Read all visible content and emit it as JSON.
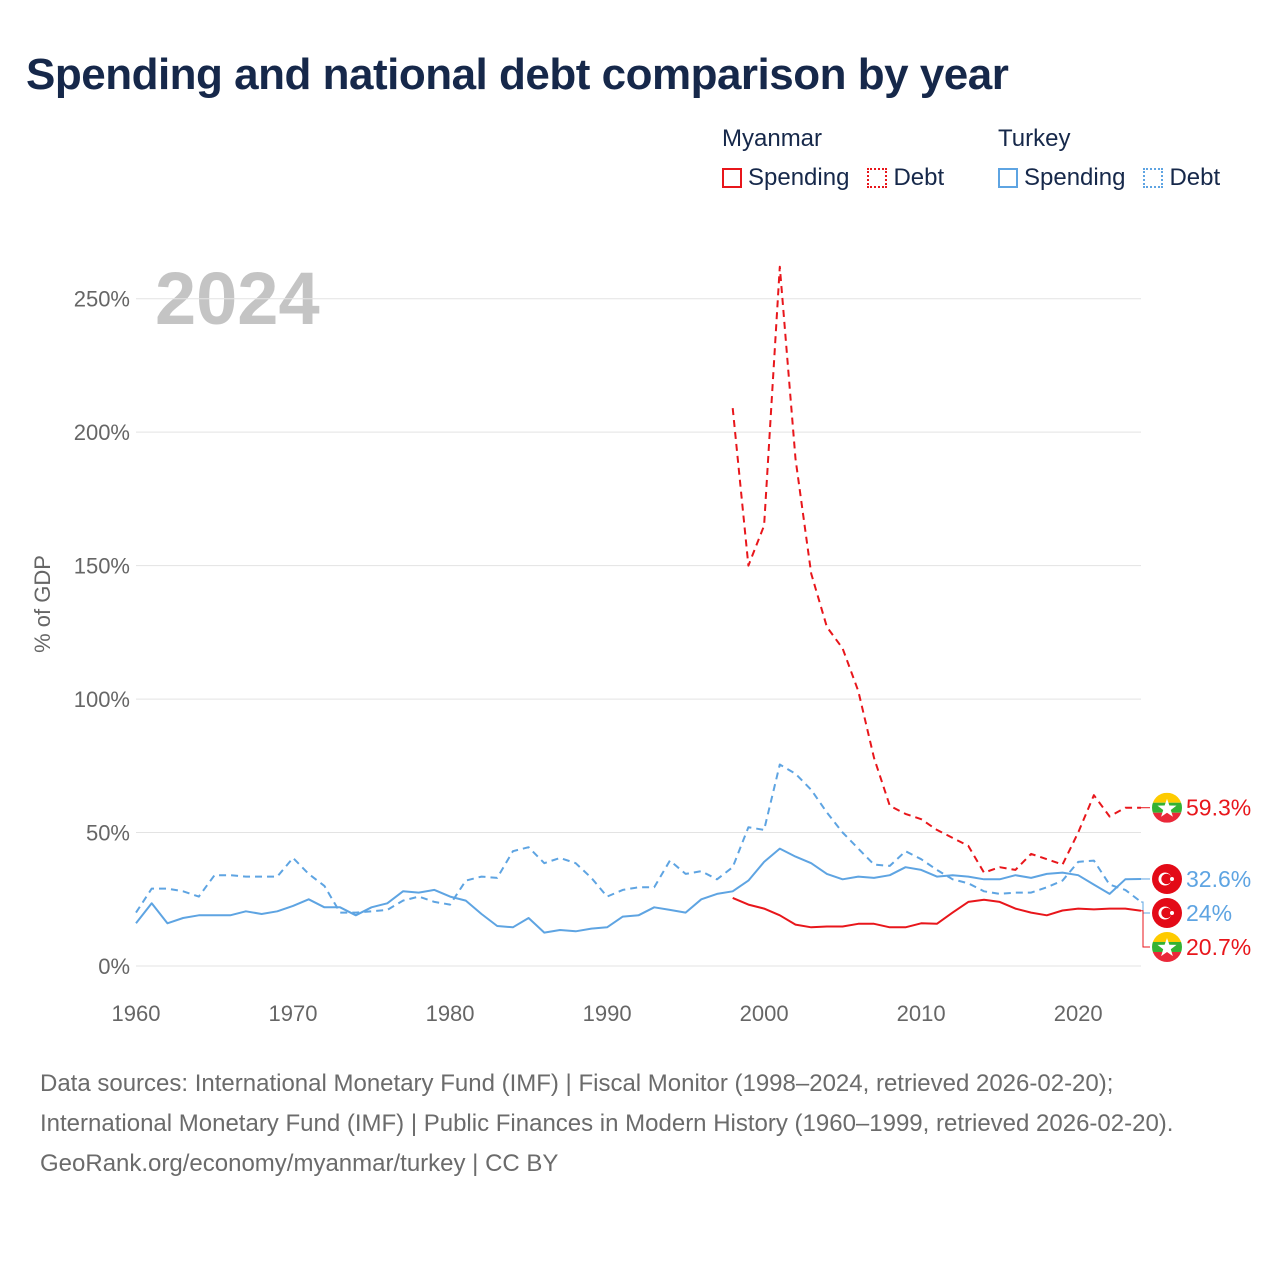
{
  "title": "Spending and national debt comparison by year",
  "legend": {
    "groups": [
      {
        "country": "Myanmar",
        "color": "#e8161b",
        "spending_label": "Spending",
        "debt_label": "Debt"
      },
      {
        "country": "Turkey",
        "color": "#5ea4e2",
        "spending_label": "Spending",
        "debt_label": "Debt"
      }
    ]
  },
  "chart_data": {
    "type": "line",
    "year_watermark": "2024",
    "ylabel": "% of GDP",
    "xlabel": "",
    "xlim": [
      1960,
      2024
    ],
    "ylim": [
      0,
      260
    ],
    "x_ticks": [
      1960,
      1970,
      1980,
      1990,
      2000,
      2010,
      2020
    ],
    "x_tick_labels": [
      "1960",
      "1970",
      "1980",
      "1990",
      "2000",
      "2010",
      "2020"
    ],
    "y_ticks": [
      0,
      50,
      100,
      150,
      200,
      250
    ],
    "y_tick_labels": [
      "0%",
      "50%",
      "100%",
      "150%",
      "200%",
      "250%"
    ],
    "grid": true,
    "series": [
      {
        "name": "Myanmar Debt",
        "country": "Myanmar",
        "kind": "debt",
        "style": "dashed",
        "color": "#e8161b",
        "end_label": "59.3%",
        "flag": "myanmar",
        "x": [
          1998,
          1999,
          2000,
          2001,
          2002,
          2003,
          2004,
          2005,
          2006,
          2007,
          2008,
          2009,
          2010,
          2011,
          2012,
          2013,
          2014,
          2015,
          2016,
          2017,
          2018,
          2019,
          2020,
          2021,
          2022,
          2023,
          2024
        ],
        "values": [
          209,
          150,
          165,
          262,
          190,
          147,
          127,
          119,
          103,
          78,
          60,
          57,
          55,
          51,
          48,
          45,
          35,
          37,
          36,
          42,
          40,
          38,
          50,
          64,
          56,
          59.3,
          59.3
        ]
      },
      {
        "name": "Myanmar Spending",
        "country": "Myanmar",
        "kind": "spending",
        "style": "solid",
        "color": "#e8161b",
        "end_label": "20.7%",
        "flag": "myanmar",
        "x": [
          1998,
          1999,
          2000,
          2001,
          2002,
          2003,
          2004,
          2005,
          2006,
          2007,
          2008,
          2009,
          2010,
          2011,
          2012,
          2013,
          2014,
          2015,
          2016,
          2017,
          2018,
          2019,
          2020,
          2021,
          2022,
          2023,
          2024
        ],
        "values": [
          25.5,
          23,
          21.5,
          19,
          15.5,
          14.5,
          14.8,
          14.8,
          15.8,
          15.8,
          14.5,
          14.5,
          16,
          15.8,
          20,
          24,
          24.8,
          24,
          21.5,
          20,
          19,
          20.8,
          21.5,
          21.2,
          21.5,
          21.5,
          20.7
        ]
      },
      {
        "name": "Turkey Debt",
        "country": "Turkey",
        "kind": "debt",
        "style": "dashed",
        "color": "#5ea4e2",
        "end_label": "24%",
        "flag": "turkey",
        "x": [
          1960,
          1961,
          1962,
          1963,
          1964,
          1965,
          1966,
          1967,
          1968,
          1969,
          1970,
          1971,
          1972,
          1973,
          1974,
          1975,
          1976,
          1977,
          1978,
          1979,
          1980,
          1981,
          1982,
          1983,
          1984,
          1985,
          1986,
          1987,
          1988,
          1989,
          1990,
          1991,
          1992,
          1993,
          1994,
          1995,
          1996,
          1997,
          1998,
          1999,
          2000,
          2001,
          2002,
          2003,
          2004,
          2005,
          2006,
          2007,
          2008,
          2009,
          2010,
          2011,
          2012,
          2013,
          2014,
          2015,
          2016,
          2017,
          2018,
          2019,
          2020,
          2021,
          2022,
          2023,
          2024
        ],
        "values": [
          20,
          29,
          29,
          28,
          26,
          34,
          34,
          33.5,
          33.5,
          33.5,
          40.5,
          34.5,
          30,
          20,
          20,
          20.5,
          21,
          24.5,
          26,
          24,
          23,
          32,
          33.5,
          33,
          43,
          44.5,
          38.5,
          40.5,
          38.5,
          33,
          26,
          28.5,
          29.5,
          29.5,
          39.5,
          34.5,
          35.5,
          32.5,
          37,
          52,
          51,
          75.5,
          72,
          66,
          57.5,
          50,
          44,
          38,
          37.5,
          43,
          40,
          36,
          32.5,
          31,
          28,
          27,
          27.5,
          27.5,
          29.5,
          32,
          39,
          39.5,
          30.5,
          28.5,
          24
        ]
      },
      {
        "name": "Turkey Spending",
        "country": "Turkey",
        "kind": "spending",
        "style": "solid",
        "color": "#5ea4e2",
        "end_label": "32.6%",
        "flag": "turkey",
        "x": [
          1960,
          1961,
          1962,
          1963,
          1964,
          1965,
          1966,
          1967,
          1968,
          1969,
          1970,
          1971,
          1972,
          1973,
          1974,
          1975,
          1976,
          1977,
          1978,
          1979,
          1980,
          1981,
          1982,
          1983,
          1984,
          1985,
          1986,
          1987,
          1988,
          1989,
          1990,
          1991,
          1992,
          1993,
          1994,
          1995,
          1996,
          1997,
          1998,
          1999,
          2000,
          2001,
          2002,
          2003,
          2004,
          2005,
          2006,
          2007,
          2008,
          2009,
          2010,
          2011,
          2012,
          2013,
          2014,
          2015,
          2016,
          2017,
          2018,
          2019,
          2020,
          2021,
          2022,
          2023,
          2024
        ],
        "values": [
          16,
          23.5,
          16,
          18,
          19,
          19,
          19,
          20.5,
          19.5,
          20.5,
          22.5,
          25,
          22,
          22,
          19,
          22,
          23.5,
          28,
          27.5,
          28.5,
          26,
          24.5,
          19.5,
          15,
          14.5,
          18,
          12.5,
          13.5,
          13,
          14,
          14.5,
          18.5,
          19,
          22,
          21,
          20,
          25,
          27,
          28,
          32,
          39,
          44,
          41,
          38.5,
          34.5,
          32.5,
          33.5,
          33,
          34,
          37,
          36,
          33.5,
          34,
          33.5,
          32.5,
          32.5,
          34,
          33,
          34.5,
          35,
          34,
          30.5,
          27,
          32.5,
          32.6
        ]
      }
    ]
  },
  "footer": {
    "sources": "Data sources: International Monetary Fund (IMF) | Fiscal Monitor (1998–2024, retrieved 2026-02-20); International Monetary Fund (IMF) | Public Finances in Modern History (1960–1999, retrieved 2026-02-20).",
    "credit": "GeoRank.org/economy/myanmar/turkey | CC BY"
  }
}
